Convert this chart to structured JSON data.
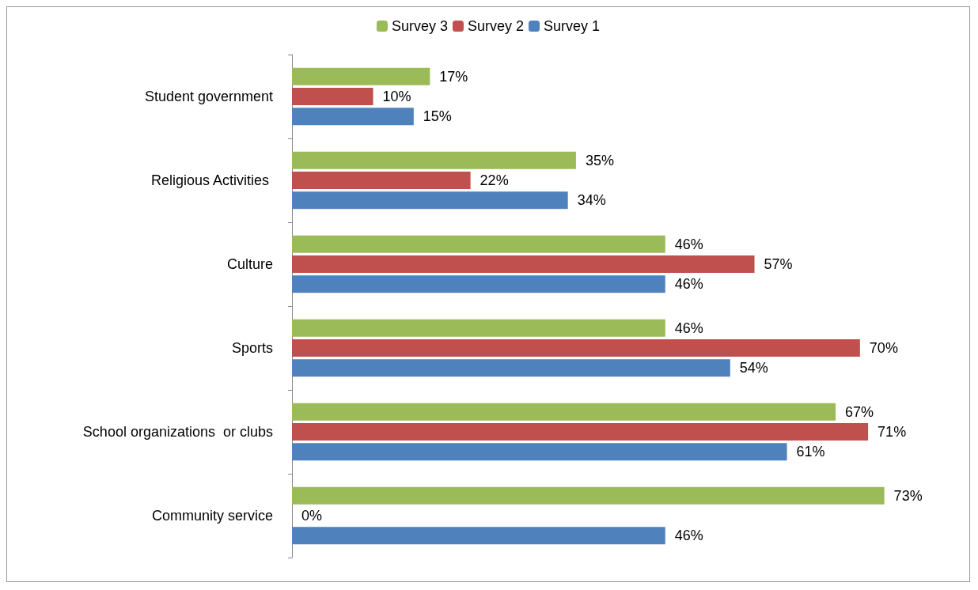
{
  "chart_data": {
    "type": "bar",
    "orientation": "horizontal",
    "legend": "top",
    "grid": false,
    "categories": [
      "Student government",
      "Religious Activities ",
      "Culture",
      "Sports",
      "School organizations  or clubs",
      "Community service"
    ],
    "series": [
      {
        "name": "Survey 3",
        "color": "#9bbb59",
        "values": [
          17,
          35,
          46,
          46,
          67,
          73
        ],
        "value_labels": [
          "17%",
          "35%",
          "46%",
          "46%",
          "67%",
          "73%"
        ]
      },
      {
        "name": "Survey 2",
        "color": "#c0504d",
        "values": [
          10,
          22,
          57,
          70,
          71,
          0
        ],
        "value_labels": [
          "10%",
          "22%",
          "57%",
          "70%",
          "71%",
          "0%"
        ]
      },
      {
        "name": "Survey 1",
        "color": "#4f81bd",
        "values": [
          15,
          34,
          46,
          54,
          61,
          46
        ],
        "value_labels": [
          "15%",
          "34%",
          "46%",
          "54%",
          "61%",
          "46%"
        ]
      }
    ]
  }
}
